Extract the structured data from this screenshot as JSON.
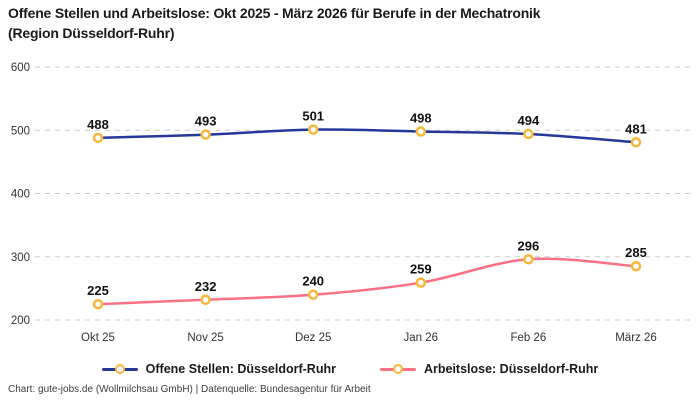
{
  "title": {
    "line1": "Offene Stellen und Arbeitslose: Okt 2025 - März 2026 für Berufe in der Mechatronik",
    "line2": "(Region Düsseldorf-Ruhr)"
  },
  "footer": {
    "credit": "Chart: gute-jobs.de (Wollmilchsau GmbH) | Datenquelle: Bundesagentur für Arbeit"
  },
  "colors": {
    "blue_series": "#24389b",
    "pink_series": "#fa7184",
    "marker_ring": "#f6b73c",
    "marker_fill": "#ffffff",
    "gridline": "#cccccc",
    "tick_label": "#333333",
    "value_label": "#111111",
    "title_text": "#1a1a1a"
  },
  "chart_data": {
    "type": "line",
    "title": "Offene Stellen und Arbeitslose: Okt 2025 - März 2026 für Berufe in der Mechatronik (Region Düsseldorf-Ruhr)",
    "categories": [
      "Okt 25",
      "Nov 25",
      "Dez 25",
      "Jan 26",
      "Feb 26",
      "März 26"
    ],
    "series": [
      {
        "name": "Offene Stellen: Düsseldorf-Ruhr",
        "values": [
          488,
          493,
          501,
          498,
          494,
          481
        ],
        "color": "#24389b"
      },
      {
        "name": "Arbeitslose: Düsseldorf-Ruhr",
        "values": [
          225,
          232,
          240,
          259,
          296,
          285
        ],
        "color": "#fa7184"
      }
    ],
    "xlabel": "",
    "ylabel": "",
    "ylim": [
      200,
      600
    ],
    "yticks": [
      200,
      300,
      400,
      500,
      600
    ],
    "grid": "horizontal-dashed",
    "line_style": "smooth",
    "value_labels": "above-points",
    "marker": {
      "shape": "circle-ring",
      "fill": "#ffffff",
      "stroke": "#f6b73c"
    },
    "legend_position": "bottom"
  }
}
